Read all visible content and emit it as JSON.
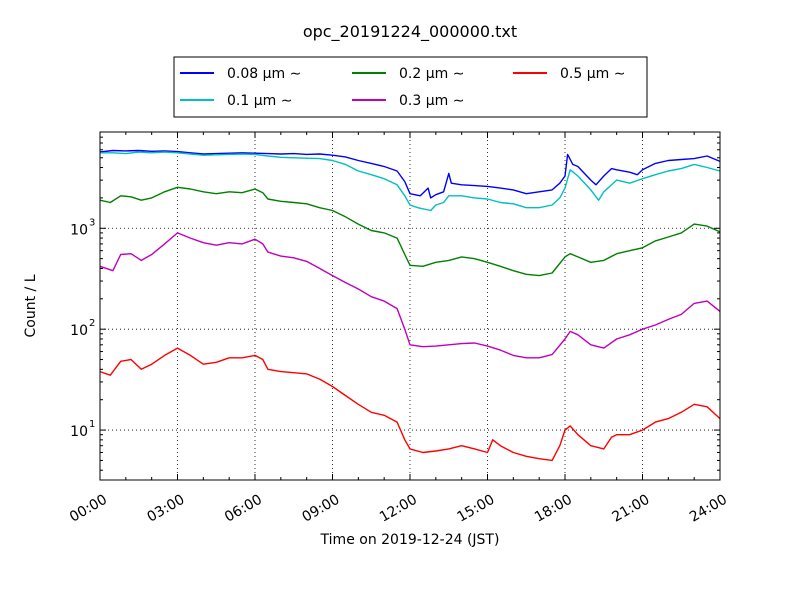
{
  "chart_data": {
    "type": "line",
    "title": "opc_20191224_000000.txt",
    "xlabel": "Time on 2019-12-24 (JST)",
    "ylabel": "Count / L",
    "yscale": "log",
    "xlim": [
      0,
      24
    ],
    "ylim": [
      3.2,
      9000
    ],
    "grid": true,
    "legend_position": "top-center",
    "x_ticks": [
      0,
      3,
      6,
      9,
      12,
      15,
      18,
      21,
      24
    ],
    "x_tick_labels": [
      "00:00",
      "03:00",
      "06:00",
      "09:00",
      "12:00",
      "15:00",
      "18:00",
      "21:00",
      "24:00"
    ],
    "y_ticks": [
      10,
      100,
      1000
    ],
    "y_tick_labels": [
      "10",
      "10",
      "10"
    ],
    "y_tick_exponents": [
      "1",
      "2",
      "3"
    ],
    "series": [
      {
        "name": "0.08 μm ∼",
        "color": "#0000ff",
        "points": [
          [
            0,
            5700
          ],
          [
            0.5,
            5900
          ],
          [
            1,
            5850
          ],
          [
            1.5,
            5900
          ],
          [
            2,
            5800
          ],
          [
            2.5,
            5850
          ],
          [
            3,
            5750
          ],
          [
            3.5,
            5600
          ],
          [
            4,
            5450
          ],
          [
            4.5,
            5500
          ],
          [
            5,
            5550
          ],
          [
            5.5,
            5600
          ],
          [
            6,
            5550
          ],
          [
            6.5,
            5500
          ],
          [
            7,
            5450
          ],
          [
            7.5,
            5500
          ],
          [
            8,
            5400
          ],
          [
            8.5,
            5450
          ],
          [
            9,
            5300
          ],
          [
            9.5,
            5100
          ],
          [
            10,
            4700
          ],
          [
            10.5,
            4400
          ],
          [
            11,
            4100
          ],
          [
            11.5,
            3700
          ],
          [
            11.8,
            2900
          ],
          [
            12,
            2200
          ],
          [
            12.4,
            2100
          ],
          [
            12.7,
            2500
          ],
          [
            12.8,
            2000
          ],
          [
            13,
            2150
          ],
          [
            13.3,
            2300
          ],
          [
            13.5,
            3500
          ],
          [
            13.6,
            2800
          ],
          [
            14,
            2700
          ],
          [
            14.5,
            2650
          ],
          [
            15,
            2600
          ],
          [
            15.5,
            2500
          ],
          [
            16,
            2400
          ],
          [
            16.5,
            2200
          ],
          [
            17,
            2300
          ],
          [
            17.5,
            2400
          ],
          [
            17.8,
            2800
          ],
          [
            18,
            3300
          ],
          [
            18.1,
            5400
          ],
          [
            18.3,
            4300
          ],
          [
            18.5,
            4100
          ],
          [
            19,
            3000
          ],
          [
            19.2,
            2700
          ],
          [
            19.5,
            3300
          ],
          [
            19.8,
            3900
          ],
          [
            20,
            3800
          ],
          [
            20.5,
            3600
          ],
          [
            20.8,
            3400
          ],
          [
            21,
            3800
          ],
          [
            21.5,
            4400
          ],
          [
            22,
            4700
          ],
          [
            22.5,
            4800
          ],
          [
            23,
            4900
          ],
          [
            23.5,
            5200
          ],
          [
            24,
            4600
          ]
        ]
      },
      {
        "name": "0.1 μm ∼",
        "color": "#00bfbf",
        "points": [
          [
            0,
            5600
          ],
          [
            0.5,
            5600
          ],
          [
            1,
            5500
          ],
          [
            1.5,
            5700
          ],
          [
            2,
            5600
          ],
          [
            2.5,
            5700
          ],
          [
            3,
            5600
          ],
          [
            3.5,
            5450
          ],
          [
            4,
            5300
          ],
          [
            4.5,
            5350
          ],
          [
            5,
            5400
          ],
          [
            5.5,
            5450
          ],
          [
            6,
            5400
          ],
          [
            6.5,
            5200
          ],
          [
            7,
            5050
          ],
          [
            7.5,
            5000
          ],
          [
            8,
            4950
          ],
          [
            8.5,
            4900
          ],
          [
            9,
            4700
          ],
          [
            9.5,
            4300
          ],
          [
            10,
            3700
          ],
          [
            10.5,
            3400
          ],
          [
            11,
            3100
          ],
          [
            11.5,
            2700
          ],
          [
            11.8,
            2100
          ],
          [
            12,
            1700
          ],
          [
            12.3,
            1600
          ],
          [
            12.8,
            1500
          ],
          [
            13,
            1700
          ],
          [
            13.3,
            1800
          ],
          [
            13.5,
            2100
          ],
          [
            14,
            2100
          ],
          [
            14.5,
            2000
          ],
          [
            15,
            1950
          ],
          [
            15.5,
            1800
          ],
          [
            16,
            1750
          ],
          [
            16.5,
            1600
          ],
          [
            17,
            1600
          ],
          [
            17.5,
            1700
          ],
          [
            17.8,
            2000
          ],
          [
            18,
            2500
          ],
          [
            18.2,
            3800
          ],
          [
            18.5,
            3300
          ],
          [
            19,
            2400
          ],
          [
            19.3,
            1900
          ],
          [
            19.5,
            2300
          ],
          [
            20,
            3000
          ],
          [
            20.5,
            2800
          ],
          [
            21,
            3100
          ],
          [
            21.5,
            3400
          ],
          [
            22,
            3700
          ],
          [
            22.5,
            3900
          ],
          [
            23,
            4300
          ],
          [
            23.5,
            4000
          ],
          [
            24,
            3700
          ]
        ]
      },
      {
        "name": "0.2 μm ∼",
        "color": "#008000",
        "points": [
          [
            0,
            1900
          ],
          [
            0.4,
            1800
          ],
          [
            0.8,
            2100
          ],
          [
            1.2,
            2050
          ],
          [
            1.6,
            1900
          ],
          [
            2,
            2000
          ],
          [
            2.5,
            2300
          ],
          [
            3,
            2550
          ],
          [
            3.5,
            2450
          ],
          [
            4,
            2300
          ],
          [
            4.5,
            2200
          ],
          [
            5,
            2300
          ],
          [
            5.5,
            2250
          ],
          [
            6,
            2450
          ],
          [
            6.3,
            2250
          ],
          [
            6.5,
            1950
          ],
          [
            7,
            1850
          ],
          [
            7.5,
            1800
          ],
          [
            8,
            1750
          ],
          [
            8.5,
            1600
          ],
          [
            9,
            1500
          ],
          [
            9.5,
            1300
          ],
          [
            10,
            1100
          ],
          [
            10.5,
            950
          ],
          [
            11,
            900
          ],
          [
            11.5,
            800
          ],
          [
            11.8,
            550
          ],
          [
            12,
            430
          ],
          [
            12.5,
            420
          ],
          [
            13,
            460
          ],
          [
            13.5,
            480
          ],
          [
            14,
            520
          ],
          [
            14.5,
            500
          ],
          [
            15,
            460
          ],
          [
            15.5,
            420
          ],
          [
            16,
            380
          ],
          [
            16.5,
            350
          ],
          [
            17,
            340
          ],
          [
            17.5,
            360
          ],
          [
            18,
            520
          ],
          [
            18.2,
            560
          ],
          [
            18.5,
            520
          ],
          [
            19,
            460
          ],
          [
            19.5,
            480
          ],
          [
            20,
            560
          ],
          [
            20.5,
            600
          ],
          [
            21,
            640
          ],
          [
            21.5,
            750
          ],
          [
            22,
            820
          ],
          [
            22.5,
            900
          ],
          [
            23,
            1100
          ],
          [
            23.5,
            1050
          ],
          [
            24,
            920
          ]
        ]
      },
      {
        "name": "0.3 μm ∼",
        "color": "#bf00bf",
        "points": [
          [
            0,
            420
          ],
          [
            0.5,
            380
          ],
          [
            0.8,
            550
          ],
          [
            1.2,
            560
          ],
          [
            1.6,
            480
          ],
          [
            2,
            550
          ],
          [
            2.5,
            700
          ],
          [
            3,
            900
          ],
          [
            3.5,
            800
          ],
          [
            4,
            720
          ],
          [
            4.5,
            680
          ],
          [
            5,
            720
          ],
          [
            5.5,
            700
          ],
          [
            6,
            780
          ],
          [
            6.3,
            700
          ],
          [
            6.5,
            580
          ],
          [
            7,
            530
          ],
          [
            7.5,
            510
          ],
          [
            8,
            470
          ],
          [
            8.5,
            400
          ],
          [
            9,
            340
          ],
          [
            9.5,
            290
          ],
          [
            10,
            250
          ],
          [
            10.5,
            210
          ],
          [
            11,
            190
          ],
          [
            11.5,
            160
          ],
          [
            11.8,
            100
          ],
          [
            12,
            70
          ],
          [
            12.5,
            67
          ],
          [
            13,
            68
          ],
          [
            13.5,
            70
          ],
          [
            14,
            72
          ],
          [
            14.5,
            73
          ],
          [
            15,
            68
          ],
          [
            15.5,
            62
          ],
          [
            16,
            55
          ],
          [
            16.5,
            52
          ],
          [
            17,
            52
          ],
          [
            17.5,
            56
          ],
          [
            18,
            80
          ],
          [
            18.2,
            95
          ],
          [
            18.5,
            88
          ],
          [
            19,
            70
          ],
          [
            19.5,
            65
          ],
          [
            20,
            80
          ],
          [
            20.5,
            88
          ],
          [
            21,
            100
          ],
          [
            21.5,
            110
          ],
          [
            22,
            125
          ],
          [
            22.5,
            140
          ],
          [
            23,
            180
          ],
          [
            23.5,
            190
          ],
          [
            24,
            150
          ]
        ]
      },
      {
        "name": "0.5 μm ∼",
        "color": "#ff0000",
        "points": [
          [
            0,
            38
          ],
          [
            0.4,
            35
          ],
          [
            0.8,
            48
          ],
          [
            1.2,
            50
          ],
          [
            1.6,
            40
          ],
          [
            2,
            45
          ],
          [
            2.5,
            55
          ],
          [
            3,
            65
          ],
          [
            3.5,
            55
          ],
          [
            4,
            45
          ],
          [
            4.5,
            47
          ],
          [
            5,
            52
          ],
          [
            5.5,
            52
          ],
          [
            6,
            55
          ],
          [
            6.3,
            50
          ],
          [
            6.5,
            40
          ],
          [
            7,
            38
          ],
          [
            7.5,
            37
          ],
          [
            8,
            36
          ],
          [
            8.5,
            32
          ],
          [
            9,
            27
          ],
          [
            9.5,
            22
          ],
          [
            10,
            18
          ],
          [
            10.5,
            15
          ],
          [
            11,
            14
          ],
          [
            11.5,
            12
          ],
          [
            11.8,
            8
          ],
          [
            12,
            6.5
          ],
          [
            12.5,
            6
          ],
          [
            13,
            6.2
          ],
          [
            13.5,
            6.5
          ],
          [
            14,
            7
          ],
          [
            14.5,
            6.5
          ],
          [
            15,
            6
          ],
          [
            15.2,
            8
          ],
          [
            15.5,
            7
          ],
          [
            16,
            6
          ],
          [
            16.5,
            5.5
          ],
          [
            17,
            5.2
          ],
          [
            17.5,
            5
          ],
          [
            17.8,
            7
          ],
          [
            18,
            10
          ],
          [
            18.2,
            11
          ],
          [
            18.5,
            9
          ],
          [
            19,
            7
          ],
          [
            19.5,
            6.5
          ],
          [
            19.8,
            8.5
          ],
          [
            20,
            9
          ],
          [
            20.5,
            9
          ],
          [
            21,
            10
          ],
          [
            21.5,
            12
          ],
          [
            22,
            13
          ],
          [
            22.5,
            15
          ],
          [
            23,
            18
          ],
          [
            23.5,
            17
          ],
          [
            24,
            13
          ]
        ]
      }
    ]
  }
}
